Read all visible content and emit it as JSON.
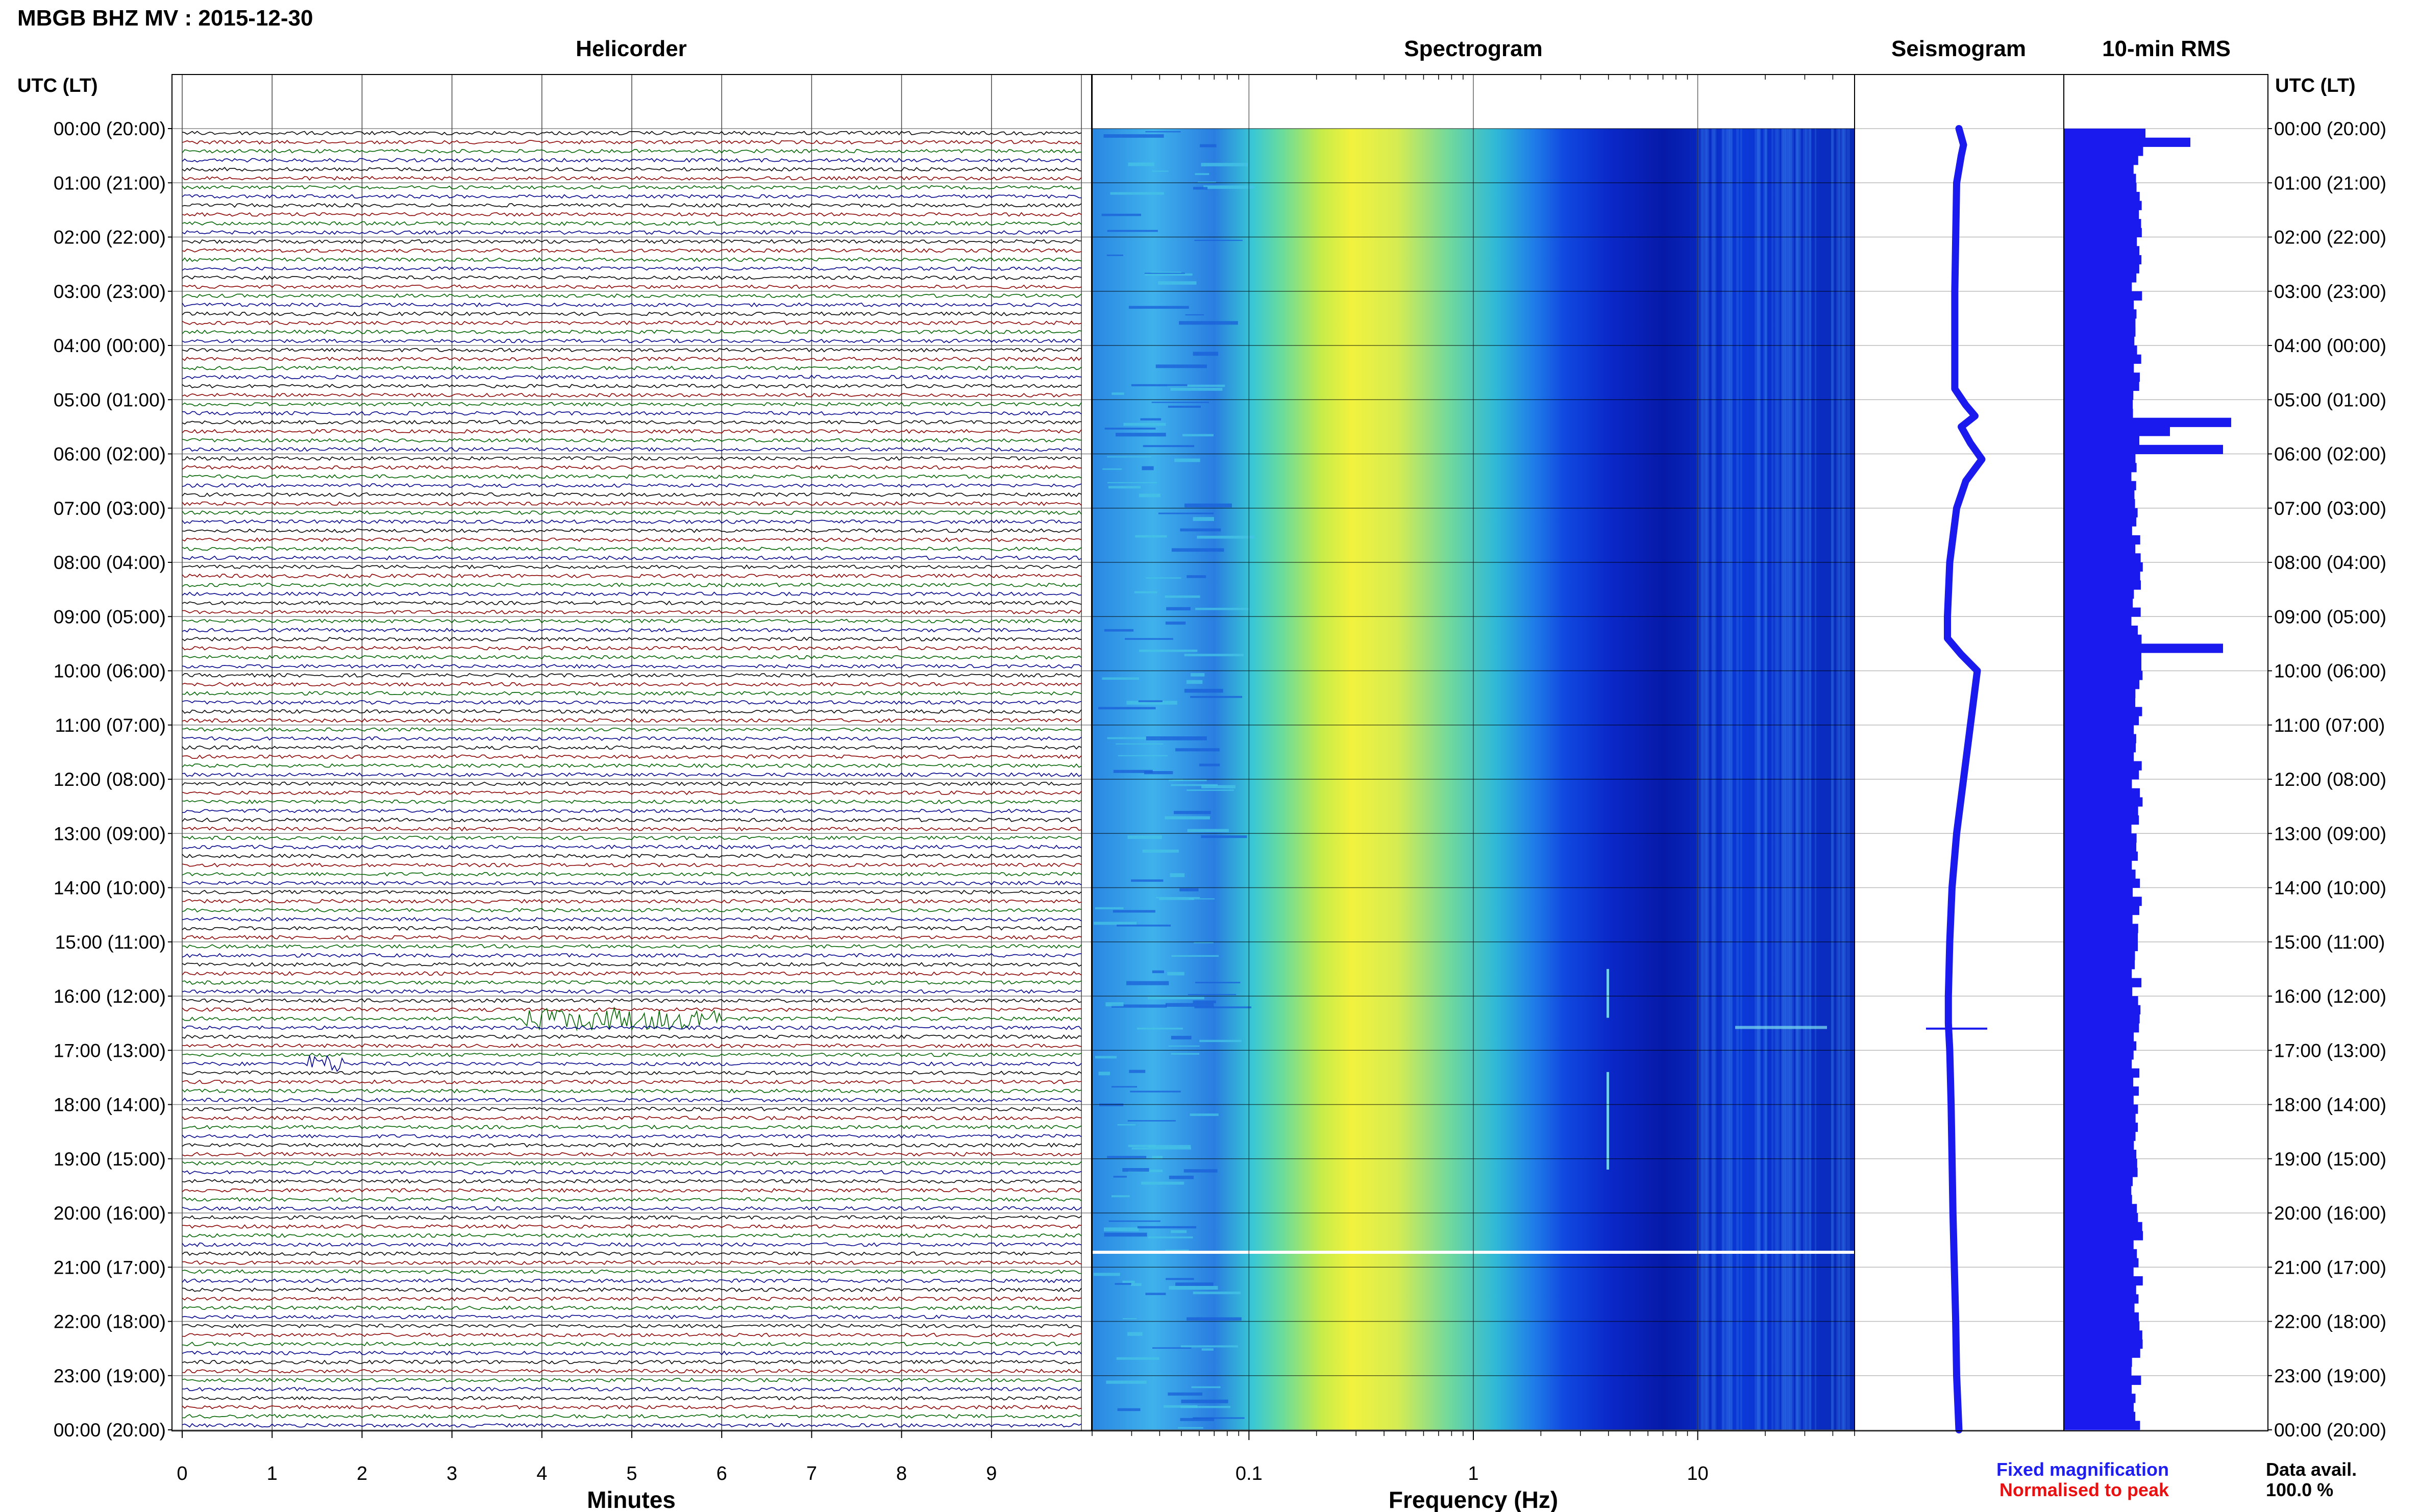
{
  "title": "MBGB BHZ MV : 2015-12-30",
  "panels": {
    "helicorder": "Helicorder",
    "spectrogram": "Spectrogram",
    "seismogram": "Seismogram",
    "rms": "10-min RMS"
  },
  "time_axis_label": "UTC (LT)",
  "time_labels": [
    "00:00 (20:00)",
    "01:00 (21:00)",
    "02:00 (22:00)",
    "03:00 (23:00)",
    "04:00 (00:00)",
    "05:00 (01:00)",
    "06:00 (02:00)",
    "07:00 (03:00)",
    "08:00 (04:00)",
    "09:00 (05:00)",
    "10:00 (06:00)",
    "11:00 (07:00)",
    "12:00 (08:00)",
    "13:00 (09:00)",
    "14:00 (10:00)",
    "15:00 (11:00)",
    "16:00 (12:00)",
    "17:00 (13:00)",
    "18:00 (14:00)",
    "19:00 (15:00)",
    "20:00 (16:00)",
    "21:00 (17:00)",
    "22:00 (18:00)",
    "23:00 (19:00)",
    "00:00 (20:00)"
  ],
  "footer": {
    "fixed": "Fixed magnification",
    "normalised": "Normalised to peak",
    "data_avail_label": "Data avail.",
    "data_avail_value": "100.0 %"
  },
  "colors": {
    "fixed": "#1e1ef0",
    "normalised": "#e81010",
    "trace_colors": [
      "#000000",
      "#8b0000",
      "#006400",
      "#00008b"
    ],
    "rms_bar": "#1a1aee",
    "seismo_line": "#1a1aee"
  },
  "chart_data": [
    {
      "type": "line",
      "name": "helicorder",
      "title": "Helicorder",
      "xlabel": "Minutes",
      "xticks": [
        0,
        1,
        2,
        3,
        4,
        5,
        6,
        7,
        8,
        9
      ],
      "xlim": [
        0,
        10
      ],
      "lines_per_hour": 6,
      "hours": 24,
      "events": [
        {
          "hour": 16,
          "line": 2,
          "start_min": 3.8,
          "end_min": 6.0,
          "amp": 1.8
        },
        {
          "hour": 17,
          "line": 1,
          "start_min": 1.4,
          "end_min": 1.8,
          "amp": 1.4
        }
      ]
    },
    {
      "type": "heatmap",
      "name": "spectrogram",
      "title": "Spectrogram",
      "xlabel": "Frequency (Hz)",
      "xscale": "log",
      "xlim": [
        0.02,
        50
      ],
      "xtick_labels": [
        "0.1",
        "1",
        "10"
      ],
      "xtick_values": [
        0.1,
        1,
        10
      ]
    },
    {
      "type": "line",
      "name": "seismogram",
      "title": "Seismogram",
      "x_hours": [
        0,
        0.3,
        0.5,
        1,
        2,
        3,
        4,
        4.8,
        5.1,
        5.3,
        5.5,
        5.8,
        6.1,
        6.5,
        7,
        8,
        9,
        9.4,
        9.7,
        10,
        11,
        12,
        13,
        14,
        15,
        16,
        16.5,
        17,
        18,
        19,
        20,
        21,
        22,
        23,
        24
      ],
      "values": [
        0.05,
        0.15,
        0.1,
        0.0,
        -0.02,
        -0.04,
        -0.04,
        -0.04,
        0.2,
        0.4,
        0.1,
        0.3,
        0.55,
        0.2,
        0.0,
        -0.15,
        -0.2,
        -0.2,
        0.1,
        0.45,
        0.3,
        0.15,
        0.0,
        -0.1,
        -0.15,
        -0.18,
        -0.18,
        -0.15,
        -0.12,
        -0.1,
        -0.08,
        -0.05,
        -0.02,
        0.0,
        0.05
      ],
      "spike_hour": 16.6
    },
    {
      "type": "bar",
      "name": "rms",
      "title": "10-min RMS",
      "hours": 24,
      "bins_per_hour": 6,
      "baseline_fraction": 0.36,
      "peaks": [
        {
          "bin": 1,
          "value": 0.62
        },
        {
          "bin": 0,
          "value": 0.4
        },
        {
          "bin": 32,
          "value": 0.82
        },
        {
          "bin": 33,
          "value": 0.52
        },
        {
          "bin": 34,
          "value": 0.37
        },
        {
          "bin": 35,
          "value": 0.78
        },
        {
          "bin": 57,
          "value": 0.78
        },
        {
          "bin": 58,
          "value": 0.38
        },
        {
          "bin": 59,
          "value": 0.38
        }
      ]
    }
  ]
}
